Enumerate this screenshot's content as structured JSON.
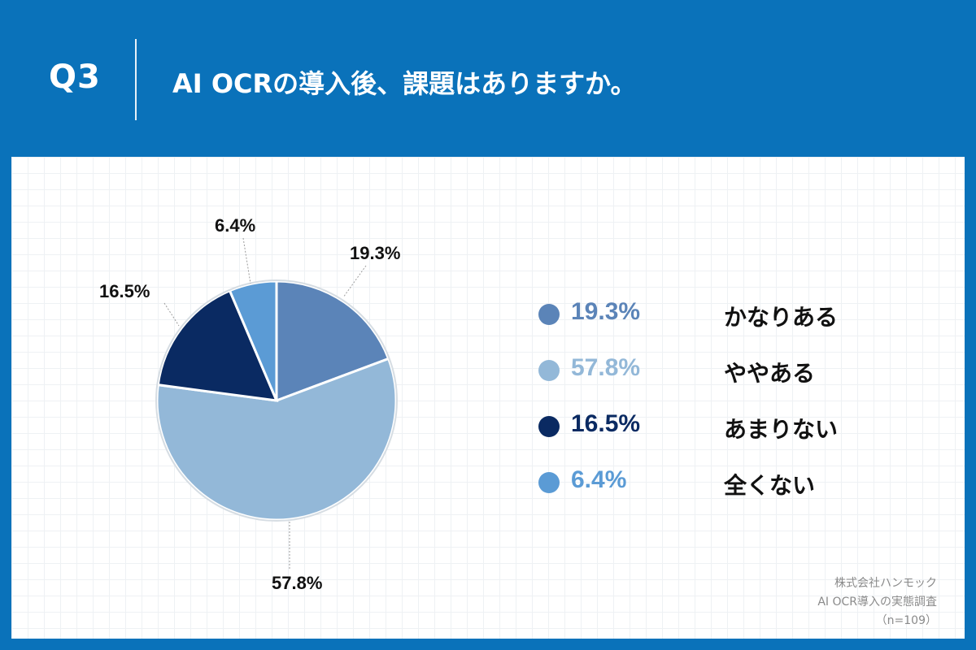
{
  "header": {
    "question_number": "Q3",
    "question": "AI OCRの導入後、課題はありますか。"
  },
  "chart_data": {
    "type": "pie",
    "categories": [
      "かなりある",
      "ややある",
      "あまりない",
      "全くない"
    ],
    "values": [
      19.3,
      57.8,
      16.5,
      6.4
    ],
    "value_labels": [
      "19.3%",
      "57.8%",
      "16.5%",
      "6.4%"
    ],
    "colors": [
      "#5b84b8",
      "#93b8d8",
      "#0a2a62",
      "#5b9bd5"
    ],
    "legend_placement": "right"
  },
  "legend": [
    {
      "pct": "19.3%",
      "label": "かなりある",
      "color": "#5b84b8"
    },
    {
      "pct": "57.8%",
      "label": "ややある",
      "color": "#93b8d8"
    },
    {
      "pct": "16.5%",
      "label": "あまりない",
      "color": "#0a2a62"
    },
    {
      "pct": "6.4%",
      "label": "全くない",
      "color": "#5b9bd5"
    }
  ],
  "source": {
    "company": "株式会社ハンモック",
    "survey": "AI OCR導入の実態調査",
    "sample": "（n=109）"
  }
}
